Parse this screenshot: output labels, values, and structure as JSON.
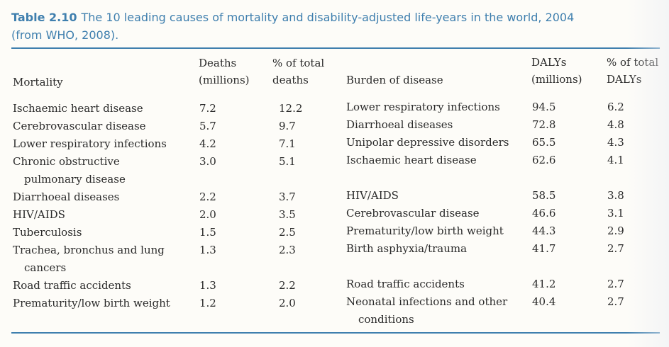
{
  "caption": {
    "number": "Table 2.10",
    "text_line1": "The 10 leading causes of mortality and disability-adjusted life-years in the world, 2004",
    "text_line2": "(from WHO, 2008)."
  },
  "headers": {
    "mortality": "Mortality",
    "deaths_line1": "Deaths",
    "deaths_line2": "(millions)",
    "pct_deaths_line1": "% of total",
    "pct_deaths_line2": "deaths",
    "burden": "Burden of disease",
    "dalys_line1": "DALYs",
    "dalys_line2": "(millions)",
    "pct_dalys_line1": "% of total",
    "pct_dalys_line2": "DALYs"
  },
  "rows": [
    {
      "cause": [
        "Ischaemic heart disease"
      ],
      "deaths": "7.2",
      "pct_deaths": "12.2",
      "burden": [
        "Lower respiratory infections"
      ],
      "dalys": "94.5",
      "pct_dalys": "6.2"
    },
    {
      "cause": [
        "Cerebrovascular disease"
      ],
      "deaths": "5.7",
      "pct_deaths": "9.7",
      "burden": [
        "Diarrhoeal diseases"
      ],
      "dalys": "72.8",
      "pct_dalys": "4.8"
    },
    {
      "cause": [
        "Lower respiratory infections"
      ],
      "deaths": "4.2",
      "pct_deaths": "7.1",
      "burden": [
        "Unipolar depressive disorders"
      ],
      "dalys": "65.5",
      "pct_dalys": "4.3"
    },
    {
      "cause": [
        "Chronic obstructive",
        "pulmonary disease"
      ],
      "deaths": "3.0",
      "pct_deaths": "5.1",
      "burden": [
        "Ischaemic heart disease"
      ],
      "dalys": "62.6",
      "pct_dalys": "4.1"
    },
    {
      "cause": [
        "Diarrhoeal diseases"
      ],
      "deaths": "2.2",
      "pct_deaths": "3.7",
      "burden": [
        "HIV/AIDS"
      ],
      "dalys": "58.5",
      "pct_dalys": "3.8"
    },
    {
      "cause": [
        "HIV/AIDS"
      ],
      "deaths": "2.0",
      "pct_deaths": "3.5",
      "burden": [
        "Cerebrovascular disease"
      ],
      "dalys": "46.6",
      "pct_dalys": "3.1"
    },
    {
      "cause": [
        "Tuberculosis"
      ],
      "deaths": "1.5",
      "pct_deaths": "2.5",
      "burden": [
        "Prematurity/low birth weight"
      ],
      "dalys": "44.3",
      "pct_dalys": "2.9"
    },
    {
      "cause": [
        "Trachea, bronchus and lung",
        "cancers"
      ],
      "deaths": "1.3",
      "pct_deaths": "2.3",
      "burden": [
        "Birth asphyxia/trauma"
      ],
      "dalys": "41.7",
      "pct_dalys": "2.7"
    },
    {
      "cause": [
        "Road traffic accidents"
      ],
      "deaths": "1.3",
      "pct_deaths": "2.2",
      "burden": [
        "Road traffic accidents"
      ],
      "dalys": "41.2",
      "pct_dalys": "2.7"
    },
    {
      "cause": [
        "Prematurity/low birth weight"
      ],
      "deaths": "1.2",
      "pct_deaths": "2.0",
      "burden": [
        "Neonatal infections and other",
        "conditions"
      ],
      "dalys": "40.4",
      "pct_dalys": "2.7"
    }
  ]
}
